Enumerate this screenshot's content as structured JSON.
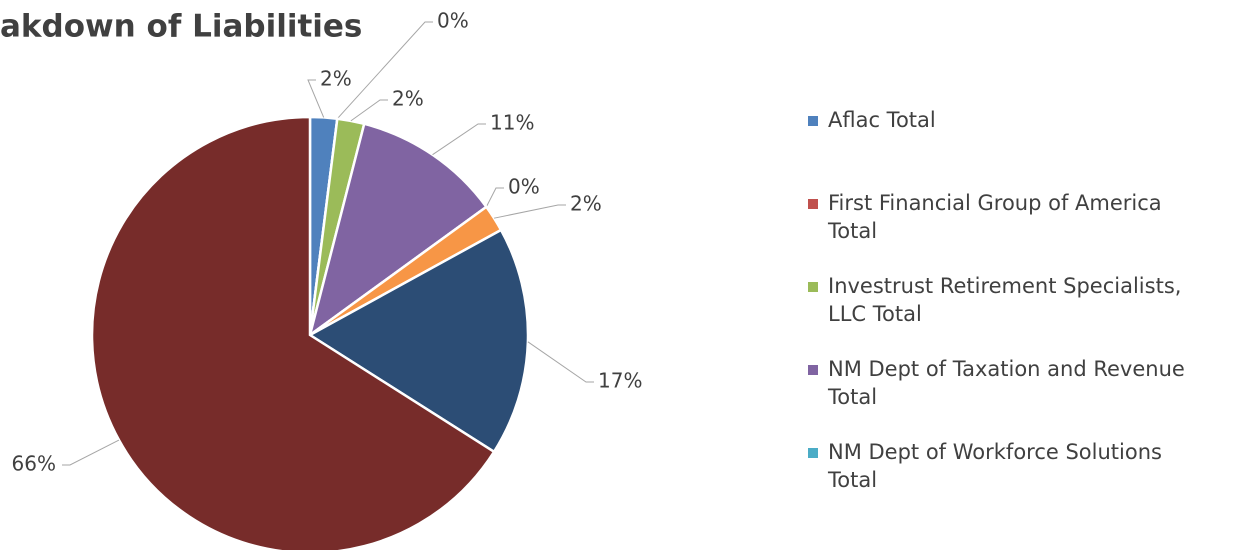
{
  "chart_data": {
    "type": "pie",
    "title": "akdown of Liabilities",
    "categories": [
      "Aflac Total",
      "First Financial Group of America Total",
      "Investrust Retirement Specialists, LLC Total",
      "NM Dept of Taxation and Revenue Total",
      "NM Dept of Workforce Solutions Total",
      null,
      null,
      null
    ],
    "values": [
      2,
      0,
      2,
      11,
      0,
      2,
      17,
      66
    ],
    "value_labels": [
      "2%",
      "0%",
      "2%",
      "11%",
      "0%",
      "2%",
      "17%",
      "66%"
    ],
    "colors": [
      "#4f81bd",
      "#c0504d",
      "#9bbb59",
      "#8064a2",
      "#4bacc6",
      "#f79646",
      "#2c4d75",
      "#772c2a"
    ],
    "legend": "right"
  }
}
